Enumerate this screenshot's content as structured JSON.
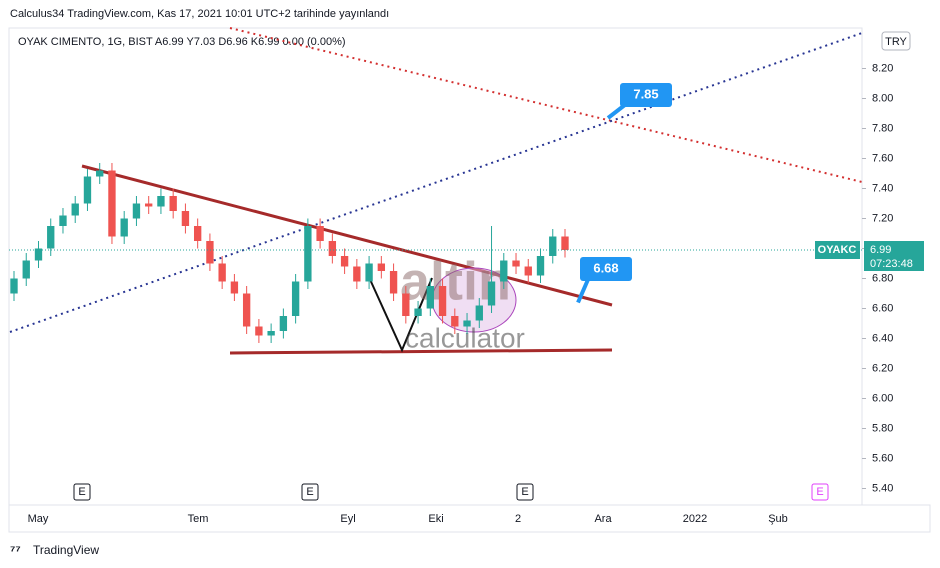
{
  "header": "Calculus34 TradingView.com, Kas 17, 2021 10:01 UTC+2 tarihinde yayınlandı",
  "footer": "TradingView",
  "watermark": {
    "brand": "altin",
    "sub": "calculator"
  },
  "chart_data": {
    "type": "candlestick",
    "legend": "OYAK CIMENTO, 1G, BIST  A6.99 Y7.03 D6.96 K6.99 0.00 (0.00%)",
    "currency": "TRY",
    "x_labels": [
      "May",
      "Tem",
      "Eyl",
      "Eki",
      "2",
      "Ara",
      "2022",
      "Şub"
    ],
    "events": [
      "E",
      "E",
      "E",
      "E"
    ],
    "ylim": [
      5.29,
      8.47
    ],
    "yticks": [
      {
        "value": 5.4,
        "label": "5.40"
      },
      {
        "value": 5.6,
        "label": "5.60"
      },
      {
        "value": 5.8,
        "label": "5.80"
      },
      {
        "value": 6.0,
        "label": "6.00"
      },
      {
        "value": 6.2,
        "label": "6.20"
      },
      {
        "value": 6.4,
        "label": "6.40"
      },
      {
        "value": 6.6,
        "label": "6.60"
      },
      {
        "value": 6.8,
        "label": "6.80"
      },
      {
        "value": 7.0,
        "label": "7.00"
      },
      {
        "value": 7.2,
        "label": "7.20"
      },
      {
        "value": 7.4,
        "label": "7.40"
      },
      {
        "value": 7.6,
        "label": "7.60"
      },
      {
        "value": 7.8,
        "label": "7.80"
      },
      {
        "value": 8.0,
        "label": "8.00"
      },
      {
        "value": 8.2,
        "label": "8.20"
      }
    ],
    "last": {
      "symbol": "OYAKC",
      "value": 6.99,
      "timer": "07:23:48"
    },
    "annotations": [
      {
        "label": "7.85",
        "value": 7.85
      },
      {
        "label": "6.68",
        "value": 6.68
      }
    ],
    "up_color": "#26a69a",
    "down_color": "#ef5350",
    "open": [
      6.7,
      6.8,
      6.92,
      7.0,
      7.15,
      7.22,
      7.3,
      7.48,
      7.52,
      7.08,
      7.2,
      7.3,
      7.28,
      7.35,
      7.25,
      7.15,
      7.05,
      6.9,
      6.78,
      6.7,
      6.48,
      6.42,
      6.45,
      6.55,
      6.78,
      7.15,
      7.05,
      6.95,
      6.88,
      6.78,
      6.9,
      6.85,
      6.7,
      6.55,
      6.6,
      6.75,
      6.55,
      6.48,
      6.52,
      6.62,
      6.78,
      6.92,
      6.88,
      6.82,
      6.95,
      7.08
    ],
    "high": [
      6.85,
      6.97,
      7.05,
      7.2,
      7.27,
      7.35,
      7.53,
      7.57,
      7.57,
      7.25,
      7.35,
      7.35,
      7.4,
      7.4,
      7.3,
      7.2,
      7.1,
      6.95,
      6.83,
      6.75,
      6.53,
      6.5,
      6.6,
      6.83,
      7.2,
      7.2,
      7.1,
      7.0,
      6.93,
      6.95,
      6.95,
      6.9,
      6.75,
      6.65,
      6.8,
      6.8,
      6.6,
      6.57,
      6.67,
      7.15,
      6.97,
      6.97,
      6.93,
      7.0,
      7.13,
      7.13
    ],
    "low": [
      6.65,
      6.75,
      6.87,
      6.95,
      7.1,
      7.17,
      7.25,
      7.43,
      7.03,
      7.03,
      7.15,
      7.23,
      7.23,
      7.2,
      7.1,
      7.0,
      6.85,
      6.73,
      6.65,
      6.43,
      6.37,
      6.37,
      6.4,
      6.5,
      6.73,
      7.0,
      6.9,
      6.83,
      6.73,
      6.73,
      6.8,
      6.65,
      6.5,
      6.5,
      6.55,
      6.5,
      6.43,
      6.43,
      6.47,
      6.57,
      6.73,
      6.83,
      6.77,
      6.77,
      6.9,
      6.94
    ],
    "close": [
      6.8,
      6.92,
      7.0,
      7.15,
      7.22,
      7.3,
      7.48,
      7.52,
      7.08,
      7.2,
      7.3,
      7.28,
      7.35,
      7.25,
      7.15,
      7.05,
      6.9,
      6.78,
      6.7,
      6.48,
      6.42,
      6.45,
      6.55,
      6.78,
      7.15,
      7.05,
      6.95,
      6.88,
      6.78,
      6.9,
      6.85,
      6.7,
      6.55,
      6.6,
      6.75,
      6.55,
      6.48,
      6.52,
      6.62,
      6.78,
      6.92,
      6.88,
      6.82,
      6.95,
      7.08,
      6.99
    ]
  }
}
